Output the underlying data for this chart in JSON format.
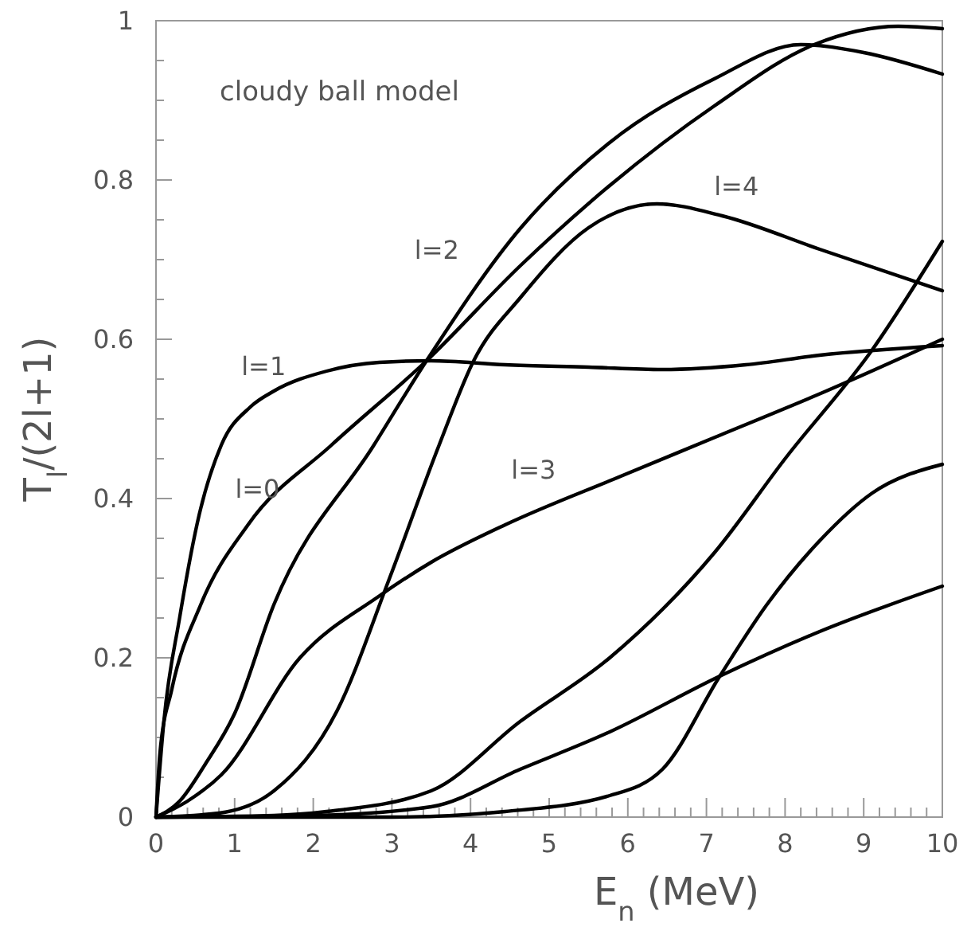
{
  "chart_data": {
    "type": "line",
    "xlabel": "E$_{n}$ (MeV)",
    "ylabel": "T$_{l}$/(2l+1)",
    "xlim": [
      0,
      10
    ],
    "ylim": [
      0,
      1
    ],
    "xticks": [
      0,
      {
        "value": 0.2,
        "label": null
      },
      {
        "value": 0.4,
        "label": null
      },
      {
        "value": 0.6,
        "label": null
      },
      {
        "value": 0.8,
        "label": null
      },
      1,
      {
        "value": 1.2,
        "label": null
      },
      {
        "value": 1.4,
        "label": null
      },
      {
        "value": 1.6,
        "label": null
      },
      {
        "value": 1.8,
        "label": null
      },
      2,
      {
        "value": 2.2,
        "label": null
      },
      {
        "value": 2.4,
        "label": null
      },
      {
        "value": 2.6,
        "label": null
      },
      {
        "value": 2.8,
        "label": null
      },
      3,
      {
        "value": 3.2,
        "label": null
      },
      {
        "value": 3.4,
        "label": null
      },
      {
        "value": 3.6,
        "label": null
      },
      {
        "value": 3.8,
        "label": null
      },
      4,
      {
        "value": 4.2,
        "label": null
      },
      {
        "value": 4.4,
        "label": null
      },
      {
        "value": 4.6,
        "label": null
      },
      {
        "value": 4.8,
        "label": null
      },
      5,
      {
        "value": 5.2,
        "label": null
      },
      {
        "value": 5.4,
        "label": null
      },
      {
        "value": 5.6,
        "label": null
      },
      {
        "value": 5.8,
        "label": null
      },
      6,
      {
        "value": 6.2,
        "label": null
      },
      {
        "value": 6.4,
        "label": null
      },
      {
        "value": 6.6,
        "label": null
      },
      {
        "value": 6.8,
        "label": null
      },
      7,
      {
        "value": 7.2,
        "label": null
      },
      {
        "value": 7.4,
        "label": null
      },
      {
        "value": 7.6,
        "label": null
      },
      {
        "value": 7.8,
        "label": null
      },
      8,
      {
        "value": 8.2,
        "label": null
      },
      {
        "value": 8.4,
        "label": null
      },
      {
        "value": 8.6,
        "label": null
      },
      {
        "value": 8.8,
        "label": null
      },
      9,
      {
        "value": 9.2,
        "label": null
      },
      {
        "value": 9.4,
        "label": null
      },
      {
        "value": 9.6,
        "label": null
      },
      {
        "value": 9.8,
        "label": null
      },
      10
    ],
    "yticks": [
      0,
      {
        "value": 0.05,
        "label": null
      },
      {
        "value": 0.1,
        "label": null
      },
      {
        "value": 0.15,
        "label": null
      },
      0.2,
      {
        "value": 0.25,
        "label": null
      },
      {
        "value": 0.3,
        "label": null
      },
      {
        "value": 0.35,
        "label": null
      },
      0.4,
      {
        "value": 0.45,
        "label": null
      },
      {
        "value": 0.5,
        "label": null
      },
      {
        "value": 0.55,
        "label": null
      },
      0.6,
      {
        "value": 0.65,
        "label": null
      },
      {
        "value": 0.7,
        "label": null
      },
      {
        "value": 0.75,
        "label": null
      },
      0.8,
      {
        "value": 0.85,
        "label": null
      },
      {
        "value": 0.9,
        "label": null
      },
      {
        "value": 0.95,
        "label": null
      },
      1
    ],
    "series": [
      {
        "name": "l=0",
        "color": "#000000",
        "x": [
          0,
          0.05,
          0.2,
          0.57,
          1.17,
          2.23,
          3.44,
          4.64,
          5.77,
          7.1,
          8.37,
          9.44,
          10
        ],
        "values": [
          0,
          0.08,
          0.16,
          0.267,
          0.367,
          0.467,
          0.573,
          0.693,
          0.793,
          0.893,
          0.97,
          0.993,
          0.99
        ]
      },
      {
        "name": "l=1",
        "color": "#000000",
        "x": [
          0,
          0.1,
          0.3,
          0.55,
          0.83,
          1.2,
          1.5,
          2.17,
          2.84,
          3.5,
          4.44,
          5.5,
          6.44,
          7.5,
          8.44,
          10
        ],
        "values": [
          0,
          0.12,
          0.25,
          0.38,
          0.467,
          0.515,
          0.535,
          0.56,
          0.571,
          0.573,
          0.568,
          0.565,
          0.562,
          0.568,
          0.58,
          0.592
        ]
      },
      {
        "name": "l=2",
        "color": "#000000",
        "x": [
          0,
          0.3,
          0.63,
          1.0,
          1.5,
          2.77,
          3.44,
          4.64,
          5.77,
          7.1,
          8.2,
          9,
          10
        ],
        "values": [
          0,
          0.02,
          0.067,
          0.13,
          0.267,
          0.467,
          0.573,
          0.74,
          0.847,
          0.927,
          0.97,
          0.96,
          0.933
        ]
      },
      {
        "name": "l=3",
        "color": "#000000",
        "x": [
          0,
          0.4,
          0.83,
          1.83,
          2.83,
          3.5,
          4.44,
          5.91,
          7.11,
          8.5,
          10
        ],
        "values": [
          0,
          0.02,
          0.053,
          0.2,
          0.277,
          0.32,
          0.367,
          0.428,
          0.477,
          0.534,
          0.6
        ]
      },
      {
        "name": "l=4",
        "color": "#000000",
        "x": [
          0,
          0.8,
          1.5,
          2.3,
          2.97,
          3.6,
          4.04,
          4.64,
          5.5,
          6.37,
          7.2,
          8.44,
          10
        ],
        "values": [
          0,
          0.005,
          0.033,
          0.133,
          0.3,
          0.467,
          0.573,
          0.653,
          0.74,
          0.77,
          0.755,
          0.713,
          0.661
        ]
      },
      {
        "color": "#000000",
        "x": [
          0,
          1.5,
          2.17,
          3.5,
          4.63,
          5.77,
          7.11,
          8,
          9.11,
          10
        ],
        "values": [
          0,
          0.002,
          0.007,
          0.033,
          0.12,
          0.2,
          0.333,
          0.45,
          0.587,
          0.723
        ]
      },
      {
        "color": "#000000",
        "x": [
          0,
          2,
          3.5,
          4.63,
          5.77,
          7.17,
          8.44,
          10
        ],
        "values": [
          0,
          0.002,
          0.013,
          0.06,
          0.107,
          0.177,
          0.233,
          0.29
        ]
      },
      {
        "color": "#000000",
        "x": [
          0,
          3,
          4.44,
          5.77,
          6.44,
          7.17,
          7.77,
          8.44,
          9.11,
          10
        ],
        "values": [
          0,
          0,
          0.007,
          0.027,
          0.06,
          0.177,
          0.267,
          0.347,
          0.407,
          0.443
        ]
      }
    ],
    "annotations": [
      "cloudy ball model"
    ]
  }
}
